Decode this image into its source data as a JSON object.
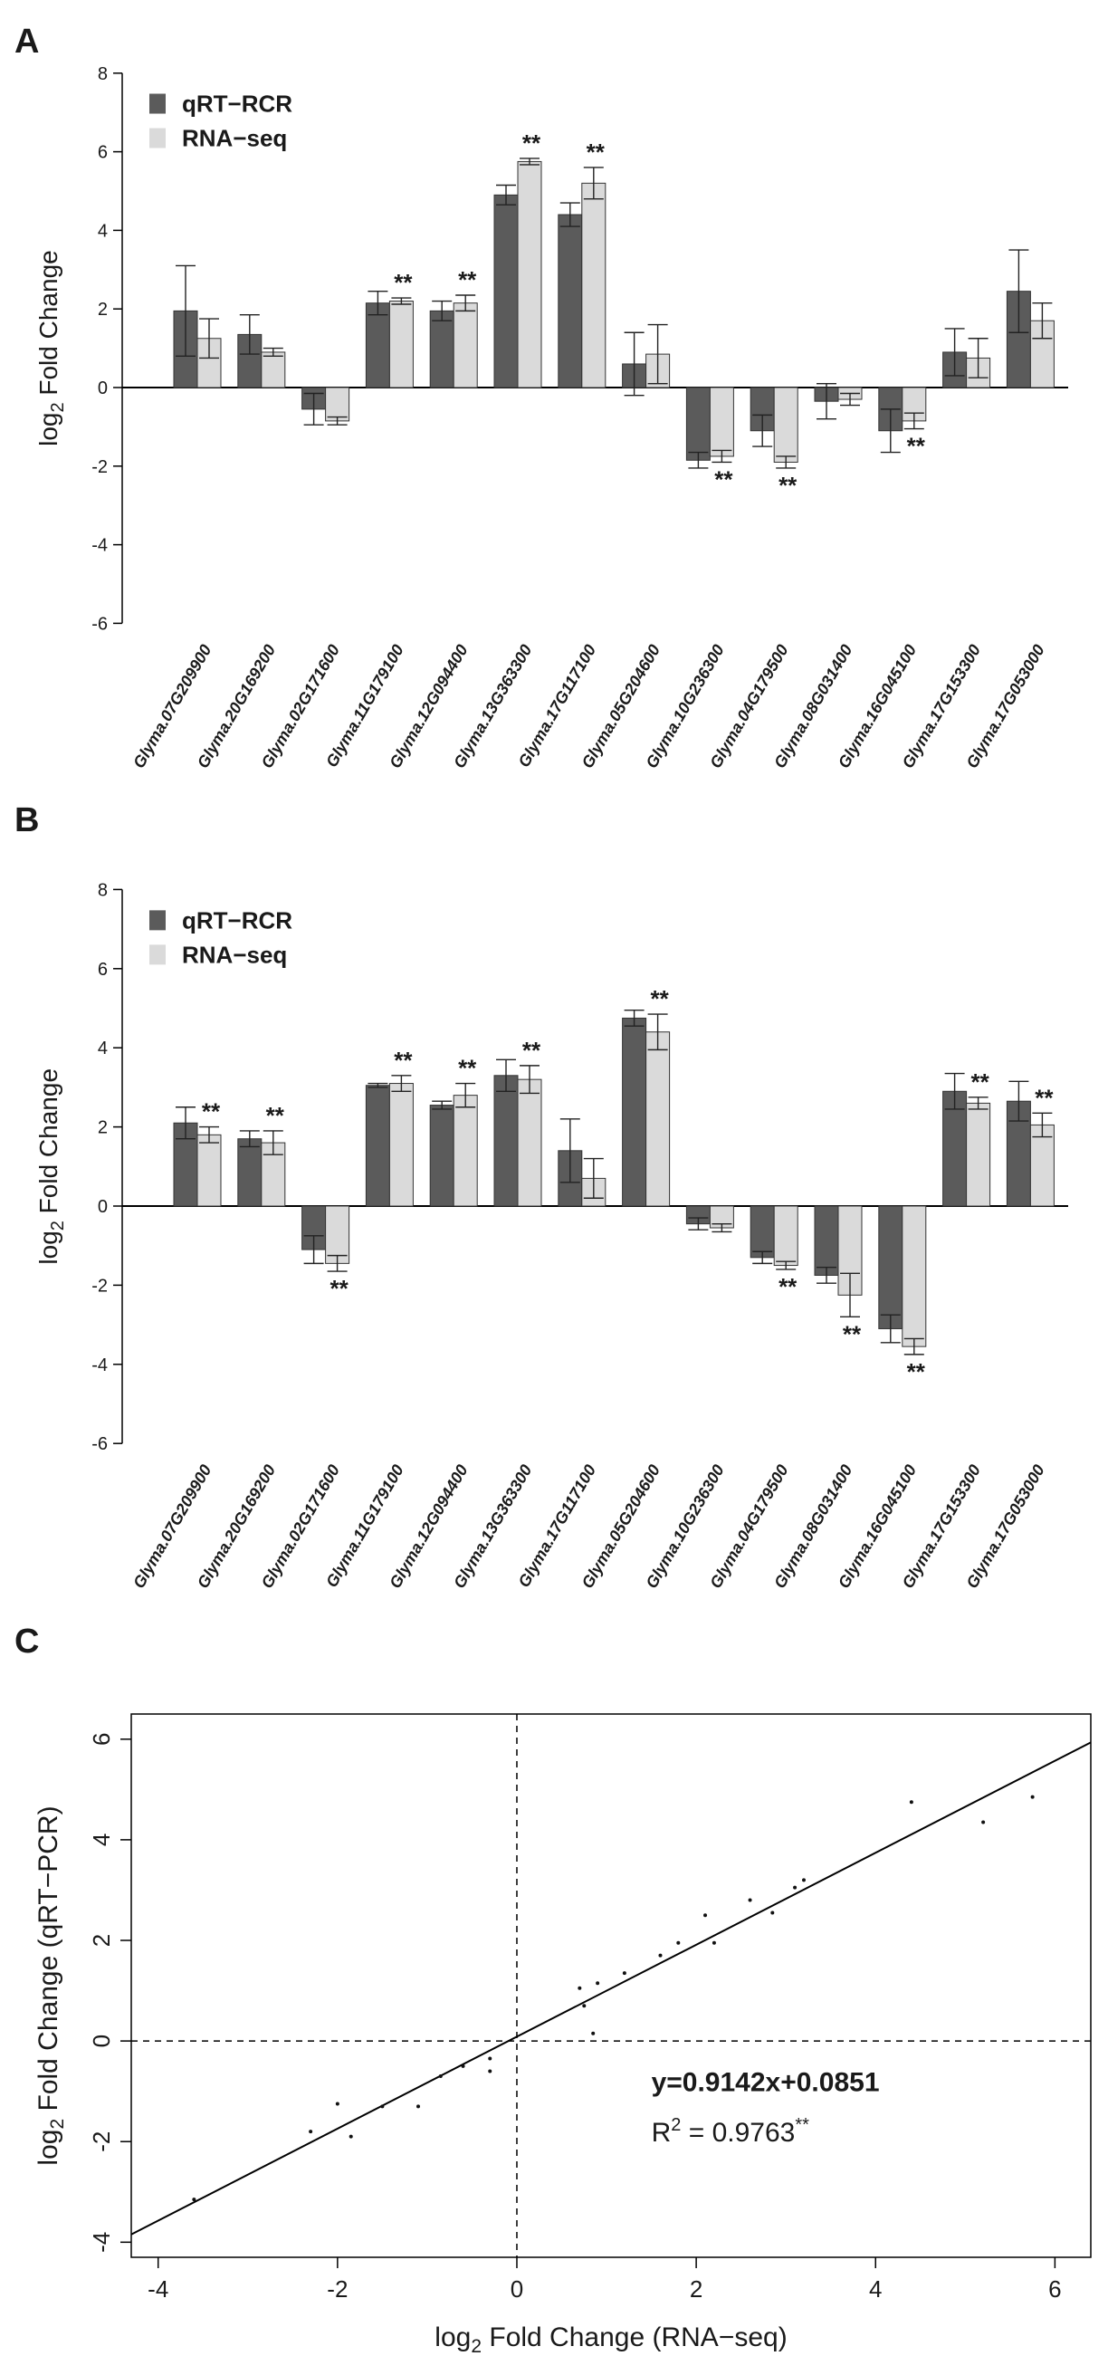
{
  "figure": {
    "panel_labels": [
      "A",
      "B",
      "C"
    ]
  },
  "colors": {
    "qrt": "#5b5b5b",
    "rna": "#dadada",
    "axis": "#000000"
  },
  "chart_data": [
    {
      "type": "bar",
      "panel": "A",
      "ylabel": "log2 Fold Change",
      "ylim": [
        -6,
        8
      ],
      "yticks": [
        -6,
        -4,
        -2,
        0,
        2,
        4,
        6,
        8
      ],
      "categories": [
        "Glyma.07G209900",
        "Glyma.20G169200",
        "Glyma.02G171600",
        "Glyma.11G179100",
        "Glyma.12G094400",
        "Glyma.13G363300",
        "Glyma.17G117100",
        "Glyma.05G204600",
        "Glyma.10G236300",
        "Glyma.04G179500",
        "Glyma.08G031400",
        "Glyma.16G045100",
        "Glyma.17G153300",
        "Glyma.17G053000"
      ],
      "legend": [
        "qRT−RCR",
        "RNA−seq"
      ],
      "series": [
        {
          "name": "qRT−RCR",
          "values": [
            1.95,
            1.35,
            -0.55,
            2.15,
            1.95,
            4.9,
            4.4,
            0.6,
            -1.85,
            -1.1,
            -0.35,
            -1.1,
            0.9,
            2.45
          ],
          "errors": [
            1.15,
            0.5,
            0.4,
            0.3,
            0.25,
            0.25,
            0.3,
            0.8,
            0.2,
            0.4,
            0.45,
            0.55,
            0.6,
            1.05
          ]
        },
        {
          "name": "RNA−seq",
          "values": [
            1.25,
            0.9,
            -0.85,
            2.2,
            2.15,
            5.75,
            5.2,
            0.85,
            -1.75,
            -1.9,
            -0.3,
            -0.85,
            0.75,
            1.7
          ],
          "errors": [
            0.5,
            0.1,
            0.1,
            0.08,
            0.2,
            0.08,
            0.4,
            0.75,
            0.15,
            0.15,
            0.15,
            0.2,
            0.5,
            0.45
          ]
        }
      ],
      "annotations": [
        {
          "category": "Glyma.11G179100",
          "text": "**"
        },
        {
          "category": "Glyma.12G094400",
          "text": "**"
        },
        {
          "category": "Glyma.13G363300",
          "text": "**"
        },
        {
          "category": "Glyma.17G117100",
          "text": "**"
        },
        {
          "category": "Glyma.10G236300",
          "text": "**"
        },
        {
          "category": "Glyma.04G179500",
          "text": "**"
        },
        {
          "category": "Glyma.16G045100",
          "text": "**"
        }
      ]
    },
    {
      "type": "bar",
      "panel": "B",
      "ylabel": "log2 Fold Change",
      "ylim": [
        -6,
        8
      ],
      "yticks": [
        -6,
        -4,
        -2,
        0,
        2,
        4,
        6,
        8
      ],
      "categories": [
        "Glyma.07G209900",
        "Glyma.20G169200",
        "Glyma.02G171600",
        "Glyma.11G179100",
        "Glyma.12G094400",
        "Glyma.13G363300",
        "Glyma.17G117100",
        "Glyma.05G204600",
        "Glyma.10G236300",
        "Glyma.04G179500",
        "Glyma.08G031400",
        "Glyma.16G045100",
        "Glyma.17G153300",
        "Glyma.17G053000"
      ],
      "legend": [
        "qRT−RCR",
        "RNA−seq"
      ],
      "series": [
        {
          "name": "qRT−RCR",
          "values": [
            2.1,
            1.7,
            -1.1,
            3.05,
            2.55,
            3.3,
            1.4,
            4.75,
            -0.45,
            -1.3,
            -1.75,
            -3.1,
            2.9,
            2.65
          ],
          "errors": [
            0.4,
            0.2,
            0.35,
            0.05,
            0.1,
            0.4,
            0.8,
            0.2,
            0.15,
            0.15,
            0.2,
            0.35,
            0.45,
            0.5
          ]
        },
        {
          "name": "RNA−seq",
          "values": [
            1.8,
            1.6,
            -1.45,
            3.1,
            2.8,
            3.2,
            0.7,
            4.4,
            -0.55,
            -1.5,
            -2.25,
            -3.55,
            2.6,
            2.05
          ],
          "errors": [
            0.2,
            0.3,
            0.2,
            0.2,
            0.3,
            0.35,
            0.5,
            0.45,
            0.1,
            0.1,
            0.55,
            0.2,
            0.15,
            0.3
          ]
        }
      ],
      "annotations": [
        {
          "category": "Glyma.07G209900",
          "text": "**"
        },
        {
          "category": "Glyma.20G169200",
          "text": "**"
        },
        {
          "category": "Glyma.02G171600",
          "text": "**"
        },
        {
          "category": "Glyma.11G179100",
          "text": "**"
        },
        {
          "category": "Glyma.12G094400",
          "text": "**"
        },
        {
          "category": "Glyma.13G363300",
          "text": "**"
        },
        {
          "category": "Glyma.05G204600",
          "text": "**"
        },
        {
          "category": "Glyma.04G179500",
          "text": "**"
        },
        {
          "category": "Glyma.08G031400",
          "text": "**"
        },
        {
          "category": "Glyma.16G045100",
          "text": "**"
        },
        {
          "category": "Glyma.17G153300",
          "text": "**"
        },
        {
          "category": "Glyma.17G053000",
          "text": "**"
        }
      ]
    },
    {
      "type": "scatter",
      "panel": "C",
      "xlabel": "log2 Fold Change (RNA−seq)",
      "ylabel": "log2 Fold Change (qRT−PCR)",
      "xlim": [
        -4.3,
        6.4
      ],
      "ylim": [
        -4.3,
        6.5
      ],
      "xticks": [
        -4,
        -2,
        0,
        2,
        4,
        6
      ],
      "yticks": [
        -4,
        -2,
        0,
        2,
        4,
        6
      ],
      "equation": "y=0.9142x+0.0851",
      "r2_label": "R",
      "r2_sup": "2",
      "r2_value": " = 0.9763",
      "r2_sig": "**",
      "fit": {
        "slope": 0.9142,
        "intercept": 0.0851
      },
      "reference_lines": {
        "x": 0,
        "y": 0
      },
      "points": [
        [
          -3.6,
          -3.15
        ],
        [
          -2.3,
          -1.8
        ],
        [
          -2.0,
          -1.25
        ],
        [
          -1.85,
          -1.9
        ],
        [
          -1.5,
          -1.3
        ],
        [
          -1.1,
          -1.3
        ],
        [
          -0.85,
          -0.7
        ],
        [
          -0.6,
          -0.5
        ],
        [
          -0.3,
          -0.35
        ],
        [
          -0.3,
          -0.6
        ],
        [
          0.7,
          1.05
        ],
        [
          0.75,
          0.7
        ],
        [
          0.85,
          0.15
        ],
        [
          0.9,
          1.15
        ],
        [
          1.2,
          1.35
        ],
        [
          1.6,
          1.7
        ],
        [
          1.8,
          1.95
        ],
        [
          2.1,
          2.5
        ],
        [
          2.2,
          1.95
        ],
        [
          2.6,
          2.8
        ],
        [
          2.85,
          2.55
        ],
        [
          3.1,
          3.05
        ],
        [
          3.2,
          3.2
        ],
        [
          4.4,
          4.75
        ],
        [
          5.2,
          4.35
        ],
        [
          5.75,
          4.85
        ]
      ]
    }
  ]
}
